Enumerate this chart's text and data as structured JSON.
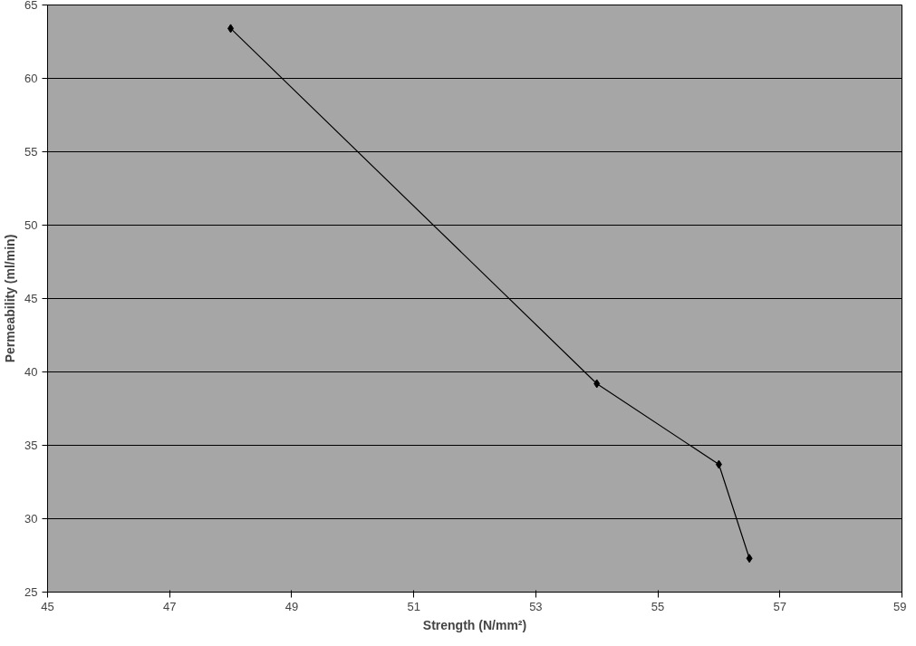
{
  "chart_data": {
    "type": "line",
    "xlabel": "Strength (N/mm²)",
    "ylabel": "Permeability (ml/min)",
    "x": [
      48,
      54,
      56,
      56.5
    ],
    "series": [
      {
        "color": "#000000",
        "values": [
          63.4,
          39.2,
          33.7,
          27.3
        ]
      }
    ],
    "xlim": [
      45,
      59
    ],
    "xticks": [
      45,
      47,
      49,
      51,
      53,
      55,
      57,
      59
    ],
    "ylim": [
      25,
      65
    ],
    "yticks": [
      25,
      30,
      35,
      40,
      45,
      50,
      55,
      60,
      65
    ],
    "grid": "y",
    "marker": "diamond",
    "line_style": "solid"
  }
}
